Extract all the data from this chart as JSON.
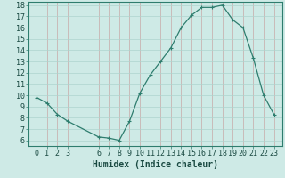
{
  "x": [
    0,
    1,
    2,
    3,
    6,
    7,
    8,
    9,
    10,
    11,
    12,
    13,
    14,
    15,
    16,
    17,
    18,
    19,
    20,
    21,
    22,
    23
  ],
  "y": [
    9.8,
    9.3,
    8.3,
    7.7,
    6.3,
    6.2,
    6.0,
    7.7,
    10.2,
    11.8,
    13.0,
    14.2,
    16.0,
    17.1,
    17.8,
    17.8,
    18.0,
    16.7,
    16.0,
    13.3,
    10.0,
    8.3
  ],
  "line_color": "#2e7d6e",
  "marker": "+",
  "marker_size": 3,
  "marker_edge_width": 0.8,
  "bg_color": "#ceeae6",
  "hgrid_color": "#aed4ce",
  "vgrid_color": "#c8a8a8",
  "xlabel": "Humidex (Indice chaleur)",
  "xlabel_fontsize": 7,
  "tick_fontsize": 6,
  "ylim_min": 5.5,
  "ylim_max": 18.3,
  "xlim_min": -0.8,
  "xlim_max": 23.8,
  "yticks": [
    6,
    7,
    8,
    9,
    10,
    11,
    12,
    13,
    14,
    15,
    16,
    17,
    18
  ],
  "xticks": [
    0,
    1,
    2,
    3,
    6,
    7,
    8,
    9,
    10,
    11,
    12,
    13,
    14,
    15,
    16,
    17,
    18,
    19,
    20,
    21,
    22,
    23
  ],
  "line_width": 0.9,
  "spine_color": "#2e7d6e"
}
